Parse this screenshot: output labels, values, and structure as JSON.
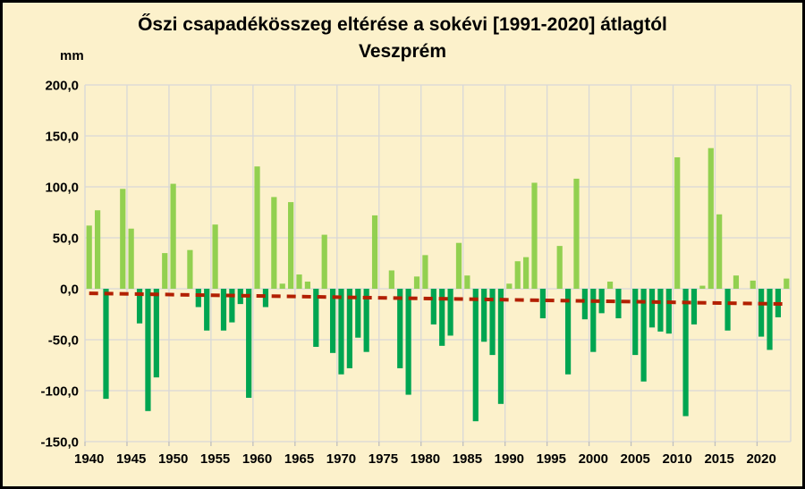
{
  "title": {
    "line1": "Őszi csapadékösszeg eltérése a sokévi [1991-2020] átlagtól",
    "line2": "Veszprém"
  },
  "y_axis": {
    "unit_label": "mm",
    "tick_labels": [
      "200,0",
      "150,0",
      "100,0",
      "50,0",
      "0,0",
      "-50,0",
      "-100,0",
      "-150,0"
    ],
    "tick_values": [
      200,
      150,
      100,
      50,
      0,
      -50,
      -100,
      -150
    ],
    "min": -150,
    "max": 200
  },
  "x_axis": {
    "tick_labels": [
      "1940",
      "1945",
      "1950",
      "1955",
      "1960",
      "1965",
      "1970",
      "1975",
      "1980",
      "1985",
      "1990",
      "1995",
      "2000",
      "2005",
      "2010",
      "2015",
      "2020"
    ],
    "tick_values": [
      1940,
      1945,
      1950,
      1955,
      1960,
      1965,
      1970,
      1975,
      1980,
      1985,
      1990,
      1995,
      2000,
      2005,
      2010,
      2015,
      2020
    ]
  },
  "colors": {
    "background": "#FCF1CB",
    "positive_bar": "#92D050",
    "negative_bar": "#00A551",
    "gridline": "#D8D8D8",
    "trend_line": "#B22000",
    "text": "#000000",
    "border": "#000000"
  },
  "chart_data": {
    "type": "bar",
    "title": "Őszi csapadékösszeg eltérése a sokévi [1991-2020] átlagtól — Veszprém",
    "xlabel": "",
    "ylabel": "mm",
    "ylim": [
      -150,
      200
    ],
    "grid": true,
    "legend": "none",
    "x": [
      1940,
      1941,
      1942,
      1943,
      1944,
      1945,
      1946,
      1947,
      1948,
      1949,
      1950,
      1951,
      1952,
      1953,
      1954,
      1955,
      1956,
      1957,
      1958,
      1959,
      1960,
      1961,
      1962,
      1963,
      1964,
      1965,
      1966,
      1967,
      1968,
      1969,
      1970,
      1971,
      1972,
      1973,
      1974,
      1975,
      1976,
      1977,
      1978,
      1979,
      1980,
      1981,
      1982,
      1983,
      1984,
      1985,
      1986,
      1987,
      1988,
      1989,
      1990,
      1991,
      1992,
      1993,
      1994,
      1995,
      1996,
      1997,
      1998,
      1999,
      2000,
      2001,
      2002,
      2003,
      2004,
      2005,
      2006,
      2007,
      2008,
      2009,
      2010,
      2011,
      2012,
      2013,
      2014,
      2015,
      2016,
      2017,
      2018,
      2019,
      2020,
      2021,
      2022,
      2023
    ],
    "values": [
      62,
      77,
      -108,
      0,
      98,
      59,
      -34,
      -120,
      -87,
      35,
      103,
      0,
      38,
      -18,
      -41,
      63,
      -41,
      -33,
      -15,
      -107,
      120,
      -18,
      90,
      5,
      85,
      14,
      7,
      -57,
      53,
      -63,
      -84,
      -78,
      -48,
      -62,
      72,
      0,
      18,
      -78,
      -104,
      12,
      33,
      -35,
      -56,
      -46,
      45,
      13,
      -130,
      -52,
      -65,
      -113,
      5,
      27,
      31,
      104,
      -29,
      0,
      42,
      -84,
      108,
      -30,
      -62,
      -24,
      7,
      -29,
      0,
      -65,
      -91,
      -38,
      -42,
      -44,
      129,
      -125,
      -35,
      3,
      138,
      73,
      -41,
      13,
      0,
      8,
      -47,
      -60,
      -28,
      10
    ],
    "bar_color_positive": "#92D050",
    "bar_color_negative": "#00A551",
    "trend_line": {
      "style": "dashed",
      "color": "#B22000",
      "start_value": -4.5,
      "end_value": -15
    }
  }
}
